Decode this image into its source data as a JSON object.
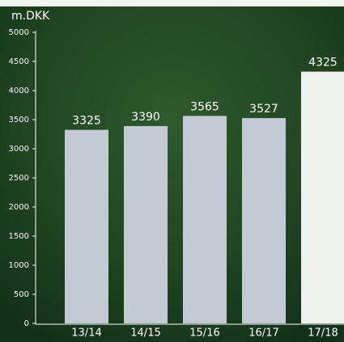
{
  "chart_data": {
    "type": "bar",
    "y_axis_label": "m.DKK",
    "categories": [
      "13/14",
      "14/15",
      "15/16",
      "16/17",
      "17/18"
    ],
    "values": [
      3325,
      3390,
      3565,
      3527,
      4325
    ],
    "colors": [
      "#c3cad3",
      "#c3cad3",
      "#c3cad3",
      "#c3cad3",
      "#eef1ee"
    ],
    "ylim": [
      0,
      5000
    ],
    "yticks": [
      0,
      500,
      1000,
      1500,
      2000,
      2500,
      3000,
      3500,
      4000,
      4500,
      5000
    ]
  }
}
